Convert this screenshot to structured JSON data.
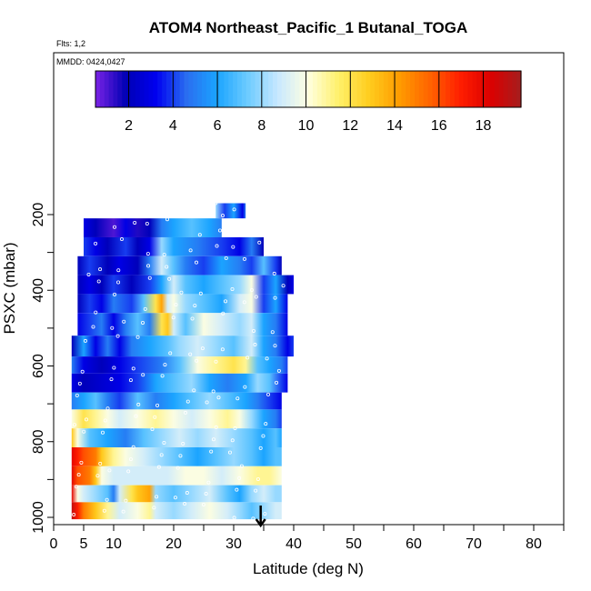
{
  "chart_data": {
    "type": "heatmap",
    "title": "ATOM4 Northeast_Pacific_1 Butanal_TOGA",
    "flights_label": "Flts: 1,2",
    "dates_label": "MMDD: 0424,0427",
    "xlabel": "Latitude (deg N)",
    "ylabel": "PSXC (mbar)",
    "xlim": [
      0,
      85
    ],
    "ylim": [
      1010,
      50
    ],
    "y_reversed": true,
    "x_ticks": [
      0,
      5,
      10,
      20,
      30,
      40,
      50,
      60,
      70,
      80
    ],
    "x_minor_ticks": [
      15,
      25,
      35,
      45,
      55,
      65,
      75,
      85
    ],
    "y_ticks": [
      200,
      400,
      600,
      800,
      1000
    ],
    "y_minor_ticks": [
      300,
      500,
      700,
      900
    ],
    "colorbar": {
      "range": [
        0.5,
        19.7
      ],
      "tick_values": [
        2,
        4,
        6,
        8,
        10,
        12,
        14,
        16,
        18
      ],
      "colors": [
        "#7b22e6",
        "#0000b4",
        "#0000f0",
        "#2a6ef0",
        "#1aa4ff",
        "#6ccbff",
        "#c8e8ff",
        "#ffffe0",
        "#fff06a",
        "#ffcd1e",
        "#ff9b00",
        "#ff6400",
        "#ff1e00",
        "#dc0000",
        "#a51e1e"
      ]
    },
    "marker": {
      "type": "arrow-down",
      "x": 34.5,
      "pressure": 1000
    },
    "rows": [
      {
        "p_top": 170,
        "p_bot": 210,
        "x_min": 27,
        "x_max": 32,
        "stops": [
          [
            27,
            8
          ],
          [
            28.5,
            4
          ],
          [
            30,
            6
          ],
          [
            31.5,
            3
          ],
          [
            32,
            5
          ]
        ]
      },
      {
        "p_top": 210,
        "p_bot": 260,
        "x_min": 5,
        "x_max": 28,
        "stops": [
          [
            5,
            3
          ],
          [
            7,
            2
          ],
          [
            10,
            1
          ],
          [
            12,
            3
          ],
          [
            14,
            1.5
          ],
          [
            16,
            2
          ],
          [
            18,
            5
          ],
          [
            20,
            6
          ],
          [
            23,
            7
          ],
          [
            26,
            6
          ],
          [
            28,
            5
          ]
        ]
      },
      {
        "p_top": 260,
        "p_bot": 310,
        "x_min": 5,
        "x_max": 35,
        "stops": [
          [
            5,
            4
          ],
          [
            7,
            3
          ],
          [
            9,
            2
          ],
          [
            12,
            4
          ],
          [
            14,
            2
          ],
          [
            16,
            3
          ],
          [
            18,
            8
          ],
          [
            20,
            6
          ],
          [
            24,
            5
          ],
          [
            28,
            4
          ],
          [
            31,
            3
          ],
          [
            33,
            5
          ],
          [
            35,
            2
          ]
        ]
      },
      {
        "p_top": 310,
        "p_bot": 360,
        "x_min": 4,
        "x_max": 38,
        "stops": [
          [
            4,
            2
          ],
          [
            6,
            4
          ],
          [
            9,
            2
          ],
          [
            11,
            3
          ],
          [
            14,
            2
          ],
          [
            16,
            5
          ],
          [
            18,
            9
          ],
          [
            20,
            7
          ],
          [
            22,
            5
          ],
          [
            25,
            4
          ],
          [
            28,
            6
          ],
          [
            31,
            5
          ],
          [
            33,
            4
          ],
          [
            35,
            7
          ],
          [
            37,
            4
          ],
          [
            38,
            2
          ]
        ]
      },
      {
        "p_top": 360,
        "p_bot": 410,
        "x_min": 4,
        "x_max": 40,
        "stops": [
          [
            4,
            2
          ],
          [
            6,
            3
          ],
          [
            8,
            2
          ],
          [
            10,
            4
          ],
          [
            13,
            2
          ],
          [
            16,
            4
          ],
          [
            18,
            6
          ],
          [
            20,
            9
          ],
          [
            22,
            7
          ],
          [
            25,
            6
          ],
          [
            28,
            7
          ],
          [
            31,
            8
          ],
          [
            33,
            10
          ],
          [
            35,
            4
          ],
          [
            37,
            6
          ],
          [
            39,
            2
          ],
          [
            40,
            3
          ]
        ]
      },
      {
        "p_top": 410,
        "p_bot": 460,
        "x_min": 4,
        "x_max": 39,
        "stops": [
          [
            4,
            2
          ],
          [
            6,
            4
          ],
          [
            8,
            3
          ],
          [
            10,
            5
          ],
          [
            13,
            4
          ],
          [
            15,
            7
          ],
          [
            17,
            12
          ],
          [
            18,
            14
          ],
          [
            19,
            9
          ],
          [
            20,
            10
          ],
          [
            22,
            8
          ],
          [
            25,
            7
          ],
          [
            28,
            6
          ],
          [
            31,
            9
          ],
          [
            33,
            10
          ],
          [
            35,
            4
          ],
          [
            37,
            6
          ],
          [
            39,
            3
          ]
        ]
      },
      {
        "p_top": 460,
        "p_bot": 520,
        "x_min": 4,
        "x_max": 39,
        "stops": [
          [
            4,
            3
          ],
          [
            6,
            4
          ],
          [
            8,
            5
          ],
          [
            10,
            3
          ],
          [
            12,
            5
          ],
          [
            14,
            7
          ],
          [
            16,
            5
          ],
          [
            18,
            12
          ],
          [
            19,
            13
          ],
          [
            20,
            9
          ],
          [
            22,
            7
          ],
          [
            25,
            10
          ],
          [
            28,
            9
          ],
          [
            31,
            8
          ],
          [
            33,
            9
          ],
          [
            35,
            6
          ],
          [
            37,
            5
          ],
          [
            39,
            3
          ]
        ]
      },
      {
        "p_top": 520,
        "p_bot": 575,
        "x_min": 3,
        "x_max": 40,
        "stops": [
          [
            3,
            2
          ],
          [
            5,
            6
          ],
          [
            7,
            3
          ],
          [
            9,
            5
          ],
          [
            11,
            3
          ],
          [
            13,
            5
          ],
          [
            16,
            6
          ],
          [
            19,
            7
          ],
          [
            21,
            8
          ],
          [
            24,
            9
          ],
          [
            27,
            8
          ],
          [
            30,
            7
          ],
          [
            33,
            9
          ],
          [
            35,
            6
          ],
          [
            37,
            5
          ],
          [
            39,
            3
          ],
          [
            40,
            4
          ]
        ]
      },
      {
        "p_top": 575,
        "p_bot": 620,
        "x_min": 3,
        "x_max": 39,
        "stops": [
          [
            3,
            5
          ],
          [
            5,
            3
          ],
          [
            8,
            2
          ],
          [
            11,
            3
          ],
          [
            14,
            4
          ],
          [
            18,
            5
          ],
          [
            21,
            7
          ],
          [
            24,
            10
          ],
          [
            27,
            11
          ],
          [
            30,
            12
          ],
          [
            32,
            11
          ],
          [
            34,
            7
          ],
          [
            36,
            6
          ],
          [
            38,
            5
          ],
          [
            39,
            4
          ]
        ]
      },
      {
        "p_top": 620,
        "p_bot": 670,
        "x_min": 3,
        "x_max": 39,
        "stops": [
          [
            3,
            3
          ],
          [
            5,
            2
          ],
          [
            8,
            2.5
          ],
          [
            11,
            3
          ],
          [
            14,
            4
          ],
          [
            17,
            6
          ],
          [
            20,
            7
          ],
          [
            23,
            8
          ],
          [
            26,
            6
          ],
          [
            29,
            5
          ],
          [
            32,
            6
          ],
          [
            34,
            8
          ],
          [
            36,
            7
          ],
          [
            38,
            4
          ],
          [
            39,
            3
          ]
        ]
      },
      {
        "p_top": 670,
        "p_bot": 715,
        "x_min": 3,
        "x_max": 38,
        "stops": [
          [
            3,
            5
          ],
          [
            5,
            6
          ],
          [
            7,
            7
          ],
          [
            9,
            5
          ],
          [
            11,
            4
          ],
          [
            14,
            7
          ],
          [
            17,
            5
          ],
          [
            20,
            6
          ],
          [
            23,
            7
          ],
          [
            26,
            8
          ],
          [
            29,
            7
          ],
          [
            32,
            6
          ],
          [
            34,
            5
          ],
          [
            36,
            4
          ],
          [
            38,
            3
          ]
        ]
      },
      {
        "p_top": 715,
        "p_bot": 765,
        "x_min": 3,
        "x_max": 38,
        "stops": [
          [
            3,
            10
          ],
          [
            5,
            12
          ],
          [
            7,
            11
          ],
          [
            9,
            10
          ],
          [
            11,
            9
          ],
          [
            14,
            10
          ],
          [
            17,
            11
          ],
          [
            20,
            10
          ],
          [
            23,
            9
          ],
          [
            26,
            10
          ],
          [
            29,
            11
          ],
          [
            31,
            10
          ],
          [
            33,
            8
          ],
          [
            35,
            6
          ],
          [
            37,
            5
          ],
          [
            38,
            4
          ]
        ]
      },
      {
        "p_top": 765,
        "p_bot": 815,
        "x_min": 3,
        "x_max": 38,
        "stops": [
          [
            3,
            13
          ],
          [
            4,
            10
          ],
          [
            6,
            7
          ],
          [
            9,
            6
          ],
          [
            12,
            5
          ],
          [
            15,
            7
          ],
          [
            18,
            8
          ],
          [
            21,
            9
          ],
          [
            24,
            8
          ],
          [
            27,
            9
          ],
          [
            30,
            8
          ],
          [
            33,
            7
          ],
          [
            35,
            6
          ],
          [
            37,
            7
          ],
          [
            38,
            6
          ]
        ]
      },
      {
        "p_top": 815,
        "p_bot": 865,
        "x_min": 3,
        "x_max": 38,
        "stops": [
          [
            3,
            18
          ],
          [
            4,
            17
          ],
          [
            5,
            16
          ],
          [
            7,
            15
          ],
          [
            8,
            13
          ],
          [
            10,
            11
          ],
          [
            12,
            10
          ],
          [
            15,
            9
          ],
          [
            18,
            8
          ],
          [
            21,
            7
          ],
          [
            24,
            6
          ],
          [
            27,
            7
          ],
          [
            30,
            8
          ],
          [
            33,
            7
          ],
          [
            35,
            6
          ],
          [
            37,
            7
          ],
          [
            38,
            7
          ]
        ]
      },
      {
        "p_top": 865,
        "p_bot": 915,
        "x_min": 3,
        "x_max": 38,
        "stops": [
          [
            3,
            18
          ],
          [
            4,
            16
          ],
          [
            6,
            15
          ],
          [
            7,
            13
          ],
          [
            8,
            10
          ],
          [
            10,
            9
          ],
          [
            13,
            9
          ],
          [
            16,
            9
          ],
          [
            19,
            9
          ],
          [
            22,
            10
          ],
          [
            25,
            10
          ],
          [
            28,
            9
          ],
          [
            31,
            10
          ],
          [
            34,
            11
          ],
          [
            36,
            11
          ],
          [
            38,
            10
          ]
        ]
      },
      {
        "p_top": 915,
        "p_bot": 960,
        "x_min": 3,
        "x_max": 38,
        "stops": [
          [
            3,
            18
          ],
          [
            4,
            10
          ],
          [
            5,
            9
          ],
          [
            7,
            8
          ],
          [
            9,
            7
          ],
          [
            10,
            5
          ],
          [
            11,
            9
          ],
          [
            13,
            12
          ],
          [
            14,
            13
          ],
          [
            16,
            14
          ],
          [
            17,
            8
          ],
          [
            20,
            7
          ],
          [
            23,
            8
          ],
          [
            26,
            9
          ],
          [
            29,
            7
          ],
          [
            31,
            6
          ],
          [
            33,
            8
          ],
          [
            35,
            9
          ],
          [
            37,
            8
          ],
          [
            38,
            8
          ]
        ]
      },
      {
        "p_top": 960,
        "p_bot": 1005,
        "x_min": 3,
        "x_max": 38,
        "stops": [
          [
            3,
            19
          ],
          [
            4,
            17
          ],
          [
            5,
            15
          ],
          [
            7,
            13
          ],
          [
            9,
            11
          ],
          [
            11,
            9
          ],
          [
            14,
            10
          ],
          [
            16,
            11
          ],
          [
            17,
            9
          ],
          [
            20,
            8
          ],
          [
            23,
            9
          ],
          [
            26,
            10
          ],
          [
            29,
            9
          ],
          [
            31,
            8
          ],
          [
            33,
            7
          ],
          [
            35,
            8
          ],
          [
            37,
            9
          ],
          [
            38,
            9
          ]
        ]
      }
    ]
  }
}
